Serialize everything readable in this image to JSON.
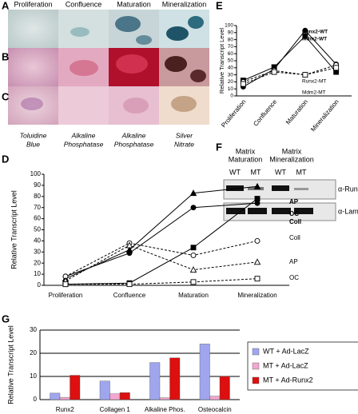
{
  "panel_labels": [
    "A",
    "B",
    "C",
    "D",
    "E",
    "F",
    "G"
  ],
  "stain_panel": {
    "columns": [
      "Proliferation",
      "Confluence",
      "Maturation",
      "Mineralization"
    ],
    "stains": [
      [
        "Toluidine",
        "Blue"
      ],
      [
        "Alkaline",
        "Phosphatase"
      ],
      [
        "Alkaline",
        "Phosphatase"
      ],
      [
        "Silver",
        "Nitrate"
      ]
    ]
  },
  "blot_panel": {
    "groups": [
      [
        "Matrix",
        "Maturation"
      ],
      [
        "Matrix",
        "Mineralization"
      ]
    ],
    "lanes": [
      "WT",
      "MT",
      "WT",
      "MT"
    ],
    "antibodies": [
      "α-Runx2",
      "α-Lamin-b"
    ]
  },
  "chart_data": [
    {
      "type": "line",
      "ylabel": "Relative Transcript Level",
      "categories": [
        "Proliferation",
        "Confluence",
        "Maturation",
        "Mineralization"
      ],
      "ylim": [
        0,
        100
      ],
      "yticks": [
        0,
        10,
        20,
        30,
        40,
        50,
        60,
        70,
        80,
        90,
        100
      ],
      "series": [
        {
          "name": "AP",
          "color": "#000000",
          "dashed": false,
          "marker": "triangle",
          "filled": true,
          "values": [
            6,
            32,
            83,
            89
          ]
        },
        {
          "name": "OC",
          "color": "#000000",
          "dashed": false,
          "marker": "square",
          "filled": true,
          "values": [
            1,
            2,
            34,
            78
          ]
        },
        {
          "name": "Coll",
          "color": "#000000",
          "dashed": false,
          "marker": "circle",
          "filled": true,
          "values": [
            8,
            29,
            70,
            74
          ]
        },
        {
          "name": "Coll",
          "color": "#000000",
          "dashed": true,
          "marker": "circle",
          "filled": false,
          "values": [
            8,
            38,
            27,
            40
          ]
        },
        {
          "name": "AP",
          "color": "#000000",
          "dashed": true,
          "marker": "triangle",
          "filled": false,
          "values": [
            4,
            36,
            14,
            21
          ]
        },
        {
          "name": "OC",
          "color": "#000000",
          "dashed": true,
          "marker": "square",
          "filled": false,
          "values": [
            1,
            1,
            3,
            6
          ]
        }
      ]
    },
    {
      "type": "line",
      "ylabel": "Relative Transcript Level",
      "categories": [
        "Proliferation",
        "Confluence",
        "Maturation",
        "Mineralization"
      ],
      "ylim": [
        0,
        100
      ],
      "yticks": [
        0,
        10,
        20,
        30,
        40,
        50,
        60,
        70,
        80,
        90,
        100
      ],
      "series": [
        {
          "name": "Runx2-WT",
          "color": "#000000",
          "dashed": false,
          "marker": "circle",
          "filled": true,
          "values": [
            13,
            38,
            93,
            45
          ]
        },
        {
          "name": "Mdm2-WT",
          "color": "#000000",
          "dashed": false,
          "marker": "square",
          "filled": true,
          "values": [
            22,
            41,
            85,
            34
          ]
        },
        {
          "name": "Runx2-MT",
          "color": "#000000",
          "dashed": true,
          "marker": "circle",
          "filled": false,
          "values": [
            20,
            36,
            30,
            44
          ]
        },
        {
          "name": "Mdm2-MT",
          "color": "#000000",
          "dashed": true,
          "marker": "square",
          "filled": false,
          "values": [
            17,
            34,
            30,
            40
          ]
        }
      ]
    },
    {
      "type": "bar",
      "ylabel": "Relative Transcript Level",
      "categories": [
        "Runx2",
        "Collagen 1",
        "Alkaline Phos.",
        "Osteocalcin"
      ],
      "ylim": [
        0,
        30
      ],
      "yticks": [
        0,
        10,
        20,
        30
      ],
      "grid": true,
      "series": [
        {
          "name": "WT + Ad-LacZ",
          "color": "#9fa6ee",
          "values": [
            2.8,
            8,
            16,
            24
          ]
        },
        {
          "name": "MT + Ad-LacZ",
          "color": "#f3a6cf",
          "values": [
            1,
            2.5,
            0.8,
            1.5
          ]
        },
        {
          "name": "MT + Ad-Runx2",
          "color": "#dd0f0f",
          "values": [
            10.5,
            3,
            18,
            10
          ]
        }
      ]
    }
  ]
}
